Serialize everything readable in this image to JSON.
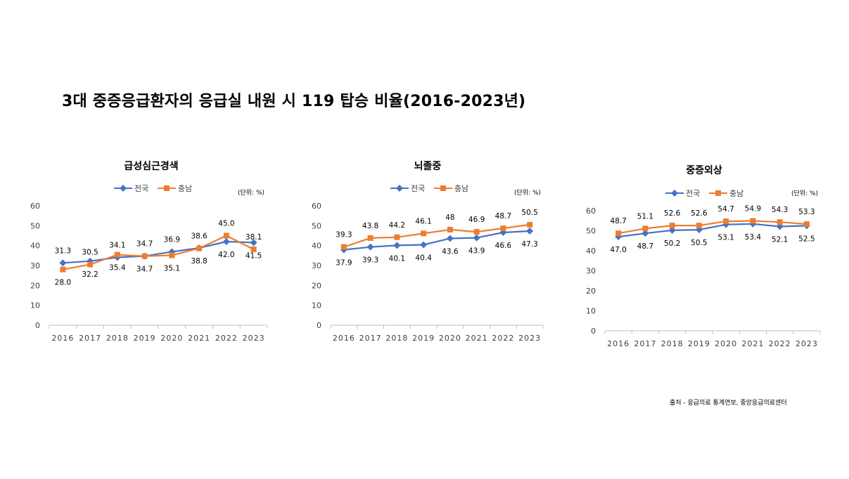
{
  "title": "3대 중증응급환자의 응급실 내원 시 119 탑승 비율(2016-2023년)",
  "source": "출처 - 응급의료 통계연보, 중앙응급의료센터",
  "colors": {
    "series1": "#4472c4",
    "series2": "#ed7d31"
  },
  "chart_data": [
    {
      "type": "line",
      "title": "급성심근경색",
      "unit": "(단위: %)",
      "x": [
        "2016",
        "2017",
        "2018",
        "2019",
        "2020",
        "2021",
        "2022",
        "2023"
      ],
      "ylim": [
        0,
        60
      ],
      "yticks": [
        0,
        10,
        20,
        30,
        40,
        50,
        60
      ],
      "grid": false,
      "legend": "top",
      "series": [
        {
          "name": "전국",
          "values": [
            31.3,
            32.2,
            34.1,
            34.7,
            36.9,
            38.8,
            42.0,
            41.5
          ]
        },
        {
          "name": "충남",
          "values": [
            28.0,
            30.5,
            35.4,
            34.7,
            35.1,
            38.6,
            45.0,
            38.1
          ]
        }
      ]
    },
    {
      "type": "line",
      "title": "뇌졸중",
      "unit": "(단위: %)",
      "x": [
        "2016",
        "2017",
        "2018",
        "2019",
        "2020",
        "2021",
        "2022",
        "2023"
      ],
      "ylim": [
        0,
        60
      ],
      "yticks": [
        0,
        10,
        20,
        30,
        40,
        50,
        60
      ],
      "grid": false,
      "legend": "top",
      "series": [
        {
          "name": "전국",
          "values": [
            37.9,
            39.3,
            40.1,
            40.4,
            43.6,
            43.9,
            46.6,
            47.3
          ]
        },
        {
          "name": "충남",
          "values": [
            39.3,
            43.8,
            44.2,
            46.1,
            48,
            46.9,
            48.7,
            50.5
          ]
        }
      ]
    },
    {
      "type": "line",
      "title": "중증외상",
      "unit": "(단위: %)",
      "x": [
        "2016",
        "2017",
        "2018",
        "2019",
        "2020",
        "2021",
        "2022",
        "2023"
      ],
      "ylim": [
        0,
        60
      ],
      "yticks": [
        0,
        10,
        20,
        30,
        40,
        50,
        60
      ],
      "grid": false,
      "legend": "top",
      "series": [
        {
          "name": "전국",
          "values": [
            47.0,
            48.7,
            50.2,
            50.5,
            53.1,
            53.4,
            52.1,
            52.5
          ]
        },
        {
          "name": "충남",
          "values": [
            48.7,
            51.1,
            52.6,
            52.6,
            54.7,
            54.9,
            54.3,
            53.3
          ]
        }
      ]
    }
  ]
}
